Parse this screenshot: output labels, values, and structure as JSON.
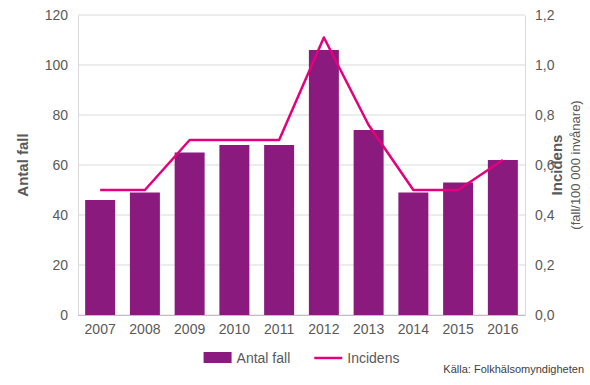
{
  "chart_data": {
    "type": "bar",
    "categories": [
      "2007",
      "2008",
      "2009",
      "2010",
      "2011",
      "2012",
      "2013",
      "2014",
      "2015",
      "2016"
    ],
    "series": [
      {
        "name": "Antal fall",
        "type": "bar",
        "color": "#8b1a7e",
        "values": [
          46,
          49,
          65,
          68,
          68,
          106,
          74,
          49,
          53,
          62
        ]
      },
      {
        "name": "Incidens",
        "type": "line",
        "color": "#e4007c",
        "axis": "y2",
        "values": [
          0.5,
          0.5,
          0.7,
          0.7,
          0.7,
          1.11,
          0.76,
          0.5,
          0.5,
          0.62
        ]
      }
    ],
    "y_label": "Antal fall",
    "y2_label": [
      "Incidens",
      "(fall/100 000 invånare)"
    ],
    "ylim": [
      0,
      120
    ],
    "yticks": [
      0,
      20,
      40,
      60,
      80,
      100,
      120
    ],
    "y2lim": [
      0,
      1.2
    ],
    "y2ticks": [
      {
        "value": 0,
        "label": "0,0"
      },
      {
        "value": 0.2,
        "label": "0,2"
      },
      {
        "value": 0.4,
        "label": "0,4"
      },
      {
        "value": 0.6,
        "label": "0,6"
      },
      {
        "value": 0.8,
        "label": "0,8"
      },
      {
        "value": 1.0,
        "label": "1,0"
      },
      {
        "value": 1.2,
        "label": "1,2"
      }
    ],
    "grid": true,
    "legend": "bottom",
    "annotations": [
      "Källa: Folkhälsomyndigheten"
    ]
  }
}
